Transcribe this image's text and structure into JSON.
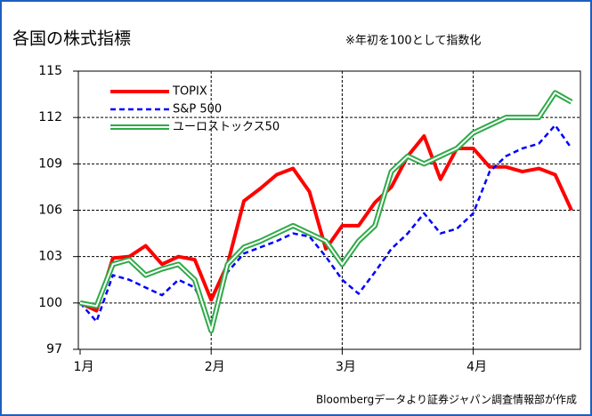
{
  "chart_data": {
    "type": "line",
    "title": "各国の株式指標",
    "subtitle": "※年初を100として指数化",
    "source": "Bloombergデータより証券ジャパン調査情報部が作成",
    "categories": [
      "1月",
      null,
      null,
      null,
      null,
      null,
      null,
      null,
      "2月",
      null,
      null,
      null,
      null,
      null,
      null,
      null,
      "3月",
      null,
      null,
      null,
      null,
      null,
      null,
      null,
      "4月",
      null,
      null,
      null,
      null,
      null,
      null
    ],
    "series": [
      {
        "name": "TOPIX",
        "color": "#ff0000",
        "values": [
          100,
          99.5,
          102.9,
          103,
          103.7,
          102.5,
          103,
          102.8,
          100.2,
          102.5,
          106.6,
          107.4,
          108.3,
          108.7,
          107.2,
          103.5,
          105,
          105,
          106.5,
          107.5,
          109.5,
          110.8,
          108,
          110,
          110,
          108.8,
          108.8,
          108.5,
          108.7,
          108.3,
          106
        ]
      },
      {
        "name": "S&P 500",
        "color": "#0000ff",
        "values": [
          100,
          98.8,
          101.8,
          101.5,
          101,
          100.5,
          101.5,
          101,
          98.7,
          102,
          103.2,
          103.6,
          104,
          104.5,
          104.3,
          103,
          101.5,
          100.6,
          102,
          103.5,
          104.5,
          105.8,
          104.5,
          104.8,
          105.8,
          108.5,
          109.5,
          110,
          110.3,
          111.5,
          110
        ]
      },
      {
        "name": "ユーロストックス50",
        "color": "#2eaa48",
        "values": [
          100,
          99.8,
          102.5,
          102.8,
          101.8,
          102.2,
          102.5,
          101.5,
          98.2,
          102.5,
          103.6,
          104,
          104.5,
          105,
          104.5,
          104,
          102.5,
          104,
          105,
          108.5,
          109.5,
          109,
          109.5,
          110,
          111,
          111.5,
          112,
          112,
          112,
          113.6,
          113
        ]
      }
    ],
    "ylim": [
      97,
      115
    ],
    "yticks": [
      97,
      100,
      103,
      106,
      109,
      112,
      115
    ],
    "grid": true,
    "legend": "upper left"
  }
}
